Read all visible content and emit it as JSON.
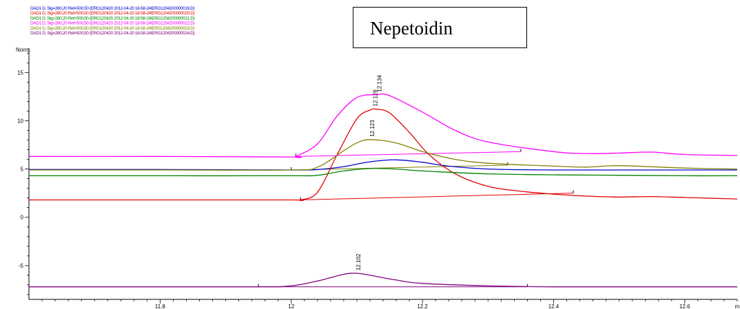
{
  "chart_data": {
    "type": "line",
    "title": "Nepetoidin",
    "ylabel": "Norm.",
    "xlabel": "",
    "xlim": [
      11.6,
      12.68
    ],
    "ylim": [
      -8.5,
      17.8
    ],
    "x_ticks": [
      {
        "value": 11.8,
        "label": "11.8"
      },
      {
        "value": 12.0,
        "label": "12"
      },
      {
        "value": 12.2,
        "label": "12.2"
      },
      {
        "value": 12.4,
        "label": "12.4"
      },
      {
        "value": 12.6,
        "label": "12.6"
      },
      {
        "value": 12.68,
        "label": "m"
      }
    ],
    "y_ticks": [
      {
        "value": 15,
        "label": "15"
      },
      {
        "value": 10,
        "label": "10"
      },
      {
        "value": 5,
        "label": "5"
      },
      {
        "value": 0,
        "label": "0"
      },
      {
        "value": -5,
        "label": "-5"
      }
    ],
    "legend": [
      {
        "text": "DAD1 D, Sig=280,20 Ref=500,50 (ERG120420 2012-04-20 18-58-24\\ERG1204200000019.D)",
        "color": "#0000cc"
      },
      {
        "text": "DAD1 D, Sig=280,20 Ref=500,50 (ERG120420 2012-04-20 18-58-24\\ERG1204200000020.D)",
        "color": "#e00000"
      },
      {
        "text": "DAD1 D, Sig=280,20 Ref=500,50 (ERG120420 2012-04-20 18-58-24\\ERG1204200000021.D)",
        "color": "#008000"
      },
      {
        "text": "DAD1 D, Sig=280,20 Ref=500,50 (ERG120420 2012-04-20 18-58-24\\ERG1204200000022.D)",
        "color": "#ff00ff"
      },
      {
        "text": "DAD1 D, Sig=280,20 Ref=500,50 (ERG120420 2012-04-20 18-58-24\\ERG1204200000023.D)",
        "color": "#808000"
      },
      {
        "text": "DAD1 D, Sig=280,20 Ref=500,50 (ERG120420 2012-04-20 18-58-24\\ERG1204200000024.D)",
        "color": "#800080"
      }
    ],
    "series": [
      {
        "color": "#0000cc",
        "x": [
          11.6,
          11.8,
          12.0,
          12.04,
          12.08,
          12.12,
          12.16,
          12.2,
          12.24,
          12.3,
          12.4,
          12.5,
          12.6,
          12.68
        ],
        "y": [
          4.95,
          4.95,
          4.9,
          4.95,
          5.25,
          5.75,
          5.95,
          5.7,
          5.3,
          5.0,
          4.9,
          4.9,
          4.9,
          4.9
        ]
      },
      {
        "color": "#e00000",
        "x": [
          11.6,
          11.8,
          12.0,
          12.014,
          12.04,
          12.07,
          12.1,
          12.12,
          12.13,
          12.15,
          12.18,
          12.21,
          12.25,
          12.3,
          12.35,
          12.4,
          12.45,
          12.5,
          12.55,
          12.6,
          12.68
        ],
        "y": [
          1.8,
          1.8,
          1.8,
          1.8,
          2.6,
          6.5,
          10.2,
          11.1,
          11.2,
          10.8,
          8.8,
          6.5,
          4.5,
          3.2,
          2.7,
          2.4,
          2.2,
          2.1,
          2.15,
          2.05,
          1.9
        ]
      },
      {
        "color": "#008000",
        "x": [
          11.6,
          11.8,
          12.0,
          12.04,
          12.08,
          12.12,
          12.16,
          12.2,
          12.3,
          12.4,
          12.5,
          12.6,
          12.68
        ],
        "y": [
          4.3,
          4.3,
          4.3,
          4.35,
          4.8,
          5.05,
          5.0,
          4.8,
          4.5,
          4.4,
          4.35,
          4.3,
          4.3
        ]
      },
      {
        "color": "#ff00ff",
        "x": [
          11.6,
          11.8,
          12.0,
          12.007,
          12.04,
          12.07,
          12.1,
          12.13,
          12.15,
          12.2,
          12.25,
          12.3,
          12.4,
          12.45,
          12.5,
          12.55,
          12.6,
          12.68
        ],
        "y": [
          6.3,
          6.3,
          6.25,
          6.3,
          7.6,
          10.5,
          12.4,
          12.7,
          12.6,
          10.9,
          9.0,
          7.8,
          6.8,
          6.6,
          6.65,
          6.75,
          6.5,
          6.4
        ]
      },
      {
        "color": "#808000",
        "x": [
          11.6,
          11.8,
          12.0,
          12.04,
          12.08,
          12.1,
          12.12,
          12.16,
          12.2,
          12.25,
          12.3,
          12.4,
          12.45,
          12.5,
          12.6,
          12.68
        ],
        "y": [
          4.9,
          4.9,
          4.9,
          5.2,
          6.9,
          7.7,
          8.05,
          7.7,
          6.8,
          6.0,
          5.6,
          5.3,
          5.2,
          5.35,
          5.1,
          5.0
        ]
      },
      {
        "color": "#800080",
        "x": [
          11.6,
          11.8,
          11.95,
          12.0,
          12.04,
          12.08,
          12.1,
          12.12,
          12.16,
          12.2,
          12.3,
          12.4,
          12.5,
          12.6,
          12.68
        ],
        "y": [
          -7.2,
          -7.2,
          -7.2,
          -7.1,
          -6.6,
          -5.9,
          -5.8,
          -6.0,
          -6.5,
          -6.85,
          -7.1,
          -7.2,
          -7.2,
          -7.2,
          -7.2
        ]
      }
    ],
    "baselines": [
      {
        "color": "#ff00ff",
        "x": [
          12.007,
          12.35
        ],
        "y": [
          6.3,
          6.8
        ]
      },
      {
        "color": "#e00000",
        "x": [
          12.014,
          12.43
        ],
        "y": [
          1.8,
          2.5
        ]
      },
      {
        "color": "#808000",
        "x": [
          12.0,
          12.33
        ],
        "y": [
          4.9,
          5.4
        ]
      },
      {
        "color": "#800080",
        "x": [
          11.95,
          12.36
        ],
        "y": [
          -7.2,
          -7.2
        ]
      }
    ],
    "peak_labels": [
      {
        "text": "12.134",
        "x": 12.134,
        "y": 12.7
      },
      {
        "text": "12.128",
        "x": 12.128,
        "y": 11.2
      },
      {
        "text": "12.123",
        "x": 12.123,
        "y": 8.05
      },
      {
        "text": "12.102",
        "x": 12.102,
        "y": -5.8
      }
    ]
  }
}
